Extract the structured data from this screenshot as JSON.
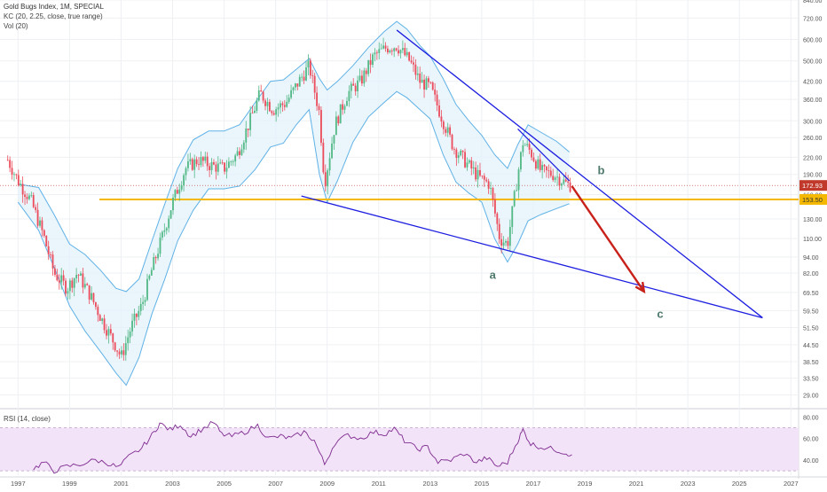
{
  "header": {
    "title": "Gold Bugs Index, 1M, SPECIAL",
    "indicator_kc": "KC (20, 2.25, close, true range)",
    "indicator_vol": "Vol (20)"
  },
  "rsi_panel": {
    "label": "RSI (14, close)",
    "ticks": [
      {
        "value": 80,
        "label": "80.00"
      },
      {
        "value": 60,
        "label": "60.00"
      },
      {
        "value": 40,
        "label": "40.00"
      }
    ]
  },
  "colors": {
    "bull": "#53b987",
    "bear": "#eb4d5c",
    "channel": "#5fb2e6",
    "channel_fill": "#e4f2fb",
    "trendline": "#1d1ee0",
    "support": "#f5b800",
    "arrow": "#c8211a",
    "rsi_line": "#7d2a8f",
    "rsi_band": "#f3e3f8",
    "label_green": "#4f7a6d",
    "price_tag": "#c0392b"
  },
  "chart_data": {
    "type": "candlestick",
    "title": "Gold Bugs Index, 1M, SPECIAL",
    "y_scale": "log",
    "ylim": [
      26,
      840
    ],
    "xlim": [
      1996.3,
      2027.3
    ],
    "x_ticks": [
      "1997",
      "1999",
      "2001",
      "2003",
      "2005",
      "2007",
      "2009",
      "2011",
      "2013",
      "2015",
      "2017",
      "2019",
      "2021",
      "2023",
      "2025",
      "2027"
    ],
    "y_ticks": [
      "840.00",
      "720.00",
      "600.00",
      "500.00",
      "420.00",
      "360.00",
      "300.00",
      "260.00",
      "220.00",
      "190.00",
      "160.00",
      "130.00",
      "110.00",
      "94.00",
      "82.00",
      "69.50",
      "59.50",
      "51.50",
      "44.50",
      "38.50",
      "33.50",
      "29.00"
    ],
    "last_price_label": "172.93",
    "last_price": 172.93,
    "support_label": "153.50",
    "support_level": 153.5,
    "price_path": [
      [
        1996.6,
        215
      ],
      [
        1997.0,
        180
      ],
      [
        1997.5,
        152
      ],
      [
        1998.0,
        112
      ],
      [
        1998.4,
        82
      ],
      [
        1998.9,
        72
      ],
      [
        1999.3,
        82
      ],
      [
        1999.8,
        68
      ],
      [
        2000.3,
        54
      ],
      [
        2000.8,
        44
      ],
      [
        2001.0,
        40
      ],
      [
        2001.4,
        52
      ],
      [
        2001.8,
        62
      ],
      [
        2002.2,
        85
      ],
      [
        2002.6,
        112
      ],
      [
        2003.0,
        150
      ],
      [
        2003.5,
        200
      ],
      [
        2004.0,
        215
      ],
      [
        2004.5,
        205
      ],
      [
        2005.0,
        200
      ],
      [
        2005.5,
        225
      ],
      [
        2006.0,
        300
      ],
      [
        2006.4,
        380
      ],
      [
        2006.9,
        330
      ],
      [
        2007.4,
        350
      ],
      [
        2007.9,
        420
      ],
      [
        2008.3,
        480
      ],
      [
        2008.7,
        320
      ],
      [
        2008.9,
        175
      ],
      [
        2009.3,
        290
      ],
      [
        2009.8,
        380
      ],
      [
        2010.3,
        420
      ],
      [
        2010.8,
        520
      ],
      [
        2011.3,
        560
      ],
      [
        2011.7,
        570
      ],
      [
        2012.2,
        500
      ],
      [
        2012.6,
        420
      ],
      [
        2013.0,
        400
      ],
      [
        2013.5,
        300
      ],
      [
        2013.9,
        240
      ],
      [
        2014.4,
        210
      ],
      [
        2014.9,
        185
      ],
      [
        2015.3,
        175
      ],
      [
        2015.7,
        110
      ],
      [
        2016.0,
        105
      ],
      [
        2016.4,
        190
      ],
      [
        2016.6,
        250
      ],
      [
        2016.9,
        230
      ],
      [
        2017.3,
        195
      ],
      [
        2017.8,
        190
      ],
      [
        2018.3,
        175
      ],
      [
        2018.5,
        172.93
      ]
    ],
    "channel_upper": [
      [
        1997.0,
        175
      ],
      [
        1997.8,
        170
      ],
      [
        1998.4,
        135
      ],
      [
        1999.0,
        105
      ],
      [
        1999.6,
        96
      ],
      [
        2000.2,
        84
      ],
      [
        2000.8,
        72
      ],
      [
        2001.2,
        70
      ],
      [
        2001.7,
        78
      ],
      [
        2002.2,
        108
      ],
      [
        2002.7,
        148
      ],
      [
        2003.2,
        200
      ],
      [
        2003.8,
        255
      ],
      [
        2004.4,
        275
      ],
      [
        2005.0,
        275
      ],
      [
        2005.6,
        290
      ],
      [
        2006.2,
        350
      ],
      [
        2006.8,
        420
      ],
      [
        2007.3,
        425
      ],
      [
        2007.8,
        465
      ],
      [
        2008.3,
        510
      ],
      [
        2008.7,
        430
      ],
      [
        2009.0,
        390
      ],
      [
        2009.4,
        420
      ],
      [
        2010.0,
        480
      ],
      [
        2010.6,
        560
      ],
      [
        2011.2,
        640
      ],
      [
        2011.7,
        700
      ],
      [
        2012.1,
        655
      ],
      [
        2012.6,
        570
      ],
      [
        2013.0,
        520
      ],
      [
        2013.5,
        430
      ],
      [
        2014.0,
        345
      ],
      [
        2014.5,
        300
      ],
      [
        2015.0,
        265
      ],
      [
        2015.5,
        225
      ],
      [
        2016.0,
        200
      ],
      [
        2016.4,
        245
      ],
      [
        2016.8,
        290
      ],
      [
        2017.3,
        272
      ],
      [
        2017.9,
        252
      ],
      [
        2018.4,
        230
      ]
    ],
    "channel_lower": [
      [
        1997.0,
        150
      ],
      [
        1997.8,
        118
      ],
      [
        1998.4,
        86
      ],
      [
        1999.0,
        62
      ],
      [
        1999.6,
        50
      ],
      [
        2000.2,
        42
      ],
      [
        2000.8,
        35
      ],
      [
        2001.2,
        31.5
      ],
      [
        2001.7,
        40
      ],
      [
        2002.2,
        58
      ],
      [
        2002.7,
        78
      ],
      [
        2003.2,
        108
      ],
      [
        2003.8,
        140
      ],
      [
        2004.4,
        168
      ],
      [
        2005.0,
        168
      ],
      [
        2005.6,
        172
      ],
      [
        2006.2,
        198
      ],
      [
        2006.8,
        240
      ],
      [
        2007.3,
        248
      ],
      [
        2007.8,
        290
      ],
      [
        2008.3,
        330
      ],
      [
        2008.7,
        190
      ],
      [
        2009.0,
        150
      ],
      [
        2009.4,
        180
      ],
      [
        2010.0,
        250
      ],
      [
        2010.6,
        310
      ],
      [
        2011.2,
        350
      ],
      [
        2011.7,
        385
      ],
      [
        2012.1,
        365
      ],
      [
        2012.6,
        330
      ],
      [
        2013.0,
        305
      ],
      [
        2013.5,
        225
      ],
      [
        2014.0,
        178
      ],
      [
        2014.5,
        162
      ],
      [
        2015.0,
        150
      ],
      [
        2015.5,
        110
      ],
      [
        2016.0,
        90
      ],
      [
        2016.4,
        105
      ],
      [
        2016.8,
        128
      ],
      [
        2017.3,
        135
      ],
      [
        2017.9,
        142
      ],
      [
        2018.4,
        148
      ]
    ],
    "trendlines": [
      {
        "from": [
          2011.7,
          650
        ],
        "to": [
          2025.9,
          56
        ]
      },
      {
        "from": [
          2008.0,
          158
        ],
        "to": [
          2025.9,
          56
        ]
      },
      {
        "from": [
          2016.4,
          280
        ],
        "to": [
          2018.4,
          180
        ]
      }
    ],
    "arrow": {
      "from": [
        2018.5,
        172
      ],
      "to": [
        2021.3,
        70
      ]
    },
    "annotations": [
      {
        "text": "a",
        "x": 2015.3,
        "y": 78
      },
      {
        "text": "b",
        "x": 2019.5,
        "y": 190
      },
      {
        "text": "c",
        "x": 2021.8,
        "y": 56
      }
    ],
    "rsi": {
      "label": "RSI (14, close)",
      "ylim": [
        26,
        86
      ],
      "band": [
        30,
        70
      ],
      "path": [
        [
          1997.6,
          32
        ],
        [
          1998.0,
          38
        ],
        [
          1998.4,
          30
        ],
        [
          1998.9,
          34
        ],
        [
          1999.4,
          36
        ],
        [
          2000.0,
          40
        ],
        [
          2000.5,
          37
        ],
        [
          2000.9,
          33
        ],
        [
          2001.3,
          43
        ],
        [
          2001.8,
          51
        ],
        [
          2002.2,
          63
        ],
        [
          2002.5,
          74
        ],
        [
          2002.9,
          68
        ],
        [
          2003.3,
          73
        ],
        [
          2003.7,
          62
        ],
        [
          2004.1,
          68
        ],
        [
          2004.6,
          75
        ],
        [
          2004.9,
          64
        ],
        [
          2005.3,
          62
        ],
        [
          2005.8,
          66
        ],
        [
          2006.3,
          72
        ],
        [
          2006.7,
          60
        ],
        [
          2007.2,
          62
        ],
        [
          2007.6,
          60
        ],
        [
          2008.1,
          66
        ],
        [
          2008.5,
          58
        ],
        [
          2008.9,
          36
        ],
        [
          2009.3,
          56
        ],
        [
          2009.8,
          63
        ],
        [
          2010.3,
          60
        ],
        [
          2010.8,
          66
        ],
        [
          2011.2,
          64
        ],
        [
          2011.6,
          69
        ],
        [
          2012.0,
          58
        ],
        [
          2012.5,
          50
        ],
        [
          2012.9,
          52
        ],
        [
          2013.3,
          38
        ],
        [
          2013.8,
          40
        ],
        [
          2014.3,
          46
        ],
        [
          2014.8,
          38
        ],
        [
          2015.2,
          42
        ],
        [
          2015.6,
          34
        ],
        [
          2016.0,
          38
        ],
        [
          2016.4,
          58
        ],
        [
          2016.6,
          68
        ],
        [
          2016.9,
          55
        ],
        [
          2017.3,
          52
        ],
        [
          2017.8,
          50
        ],
        [
          2018.2,
          47
        ],
        [
          2018.5,
          45
        ]
      ]
    }
  }
}
